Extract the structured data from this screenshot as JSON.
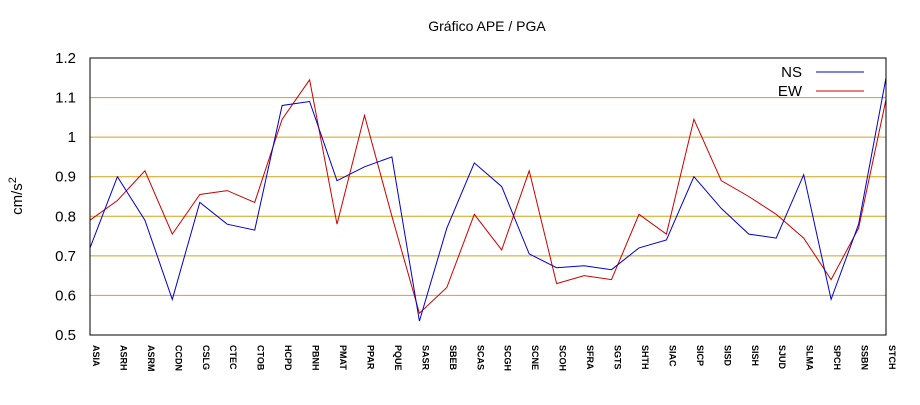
{
  "chart_data": {
    "type": "line",
    "title": "Gráfico  APE / PGA",
    "xlabel": "",
    "ylabel": "cm/s²",
    "ylim": [
      0.5,
      1.2
    ],
    "yticks": [
      "0.5",
      "0.6",
      "0.7",
      "0.8",
      "0.9",
      "1",
      "1.1",
      "1.2"
    ],
    "grid": "horizontal",
    "grid_color": "#d4a017",
    "legend_position": "top-right",
    "categories": [
      "ASIA",
      "ASRH",
      "ASRM",
      "CCDN",
      "CSLG",
      "CTEC",
      "CTOB",
      "HCPD",
      "PBNH",
      "PMAT",
      "PPAR",
      "PQUE",
      "SASR",
      "SBEB",
      "SCAS",
      "SCGH",
      "SCNE",
      "SCOH",
      "SFRA",
      "SGTS",
      "SHTH",
      "SIAC",
      "SICP",
      "SISD",
      "SISH",
      "SJUD",
      "SLMA",
      "SPCH",
      "SSBN",
      "STCH"
    ],
    "series": [
      {
        "name": "NS",
        "color": "#0000cc",
        "values": [
          0.72,
          0.9,
          0.79,
          0.59,
          0.835,
          0.78,
          0.765,
          1.08,
          1.09,
          0.89,
          0.925,
          0.95,
          0.535,
          0.77,
          0.935,
          0.875,
          0.705,
          0.67,
          0.675,
          0.665,
          0.72,
          0.74,
          0.9,
          0.82,
          0.755,
          0.745,
          0.905,
          0.59,
          0.78,
          1.15
        ]
      },
      {
        "name": "EW",
        "color": "#cc0000",
        "values": [
          0.79,
          0.84,
          0.915,
          0.755,
          0.855,
          0.865,
          0.835,
          1.045,
          1.145,
          0.78,
          1.055,
          0.8,
          0.555,
          0.62,
          0.805,
          0.715,
          0.915,
          0.63,
          0.65,
          0.64,
          0.805,
          0.755,
          1.045,
          0.89,
          0.85,
          0.805,
          0.745,
          0.64,
          0.77,
          1.095
        ]
      }
    ]
  }
}
